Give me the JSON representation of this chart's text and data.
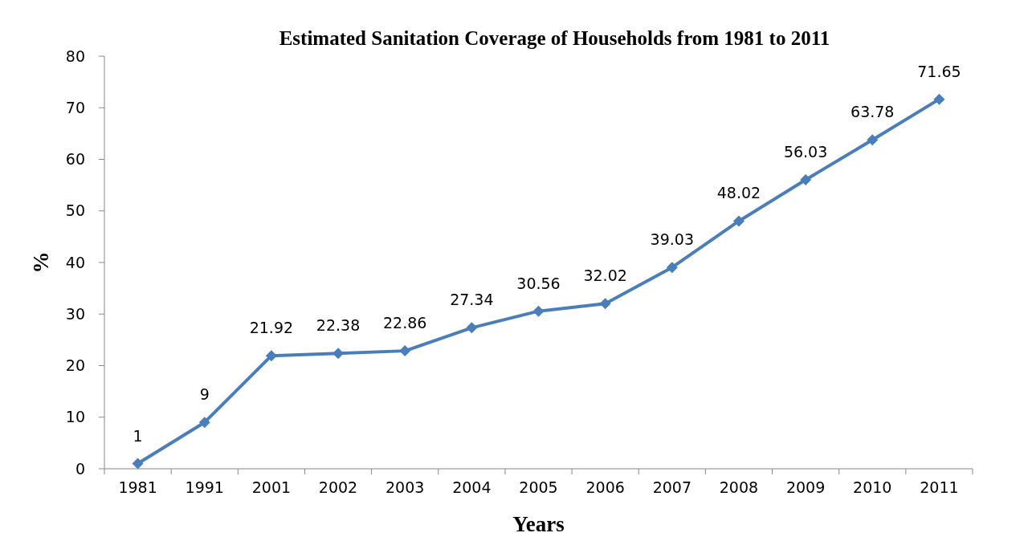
{
  "chart_data": {
    "type": "line",
    "title": "Estimated Sanitation Coverage of Households from 1981 to 2011",
    "xlabel": "Years",
    "ylabel": "%",
    "categories": [
      "1981",
      "1991",
      "2001",
      "2002",
      "2003",
      "2004",
      "2005",
      "2006",
      "2007",
      "2008",
      "2009",
      "2010",
      "2011"
    ],
    "series": [
      {
        "color": "#4a7ebb",
        "values": [
          1,
          9,
          21.92,
          22.38,
          22.86,
          27.34,
          30.56,
          32.02,
          39.03,
          48.02,
          56.03,
          63.78,
          71.65
        ]
      }
    ],
    "ylim": [
      0,
      80
    ],
    "yticks": [
      0,
      10,
      20,
      30,
      40,
      50,
      60,
      70,
      80
    ],
    "data_labels": true,
    "marker": "diamond",
    "line_style": "solid"
  }
}
